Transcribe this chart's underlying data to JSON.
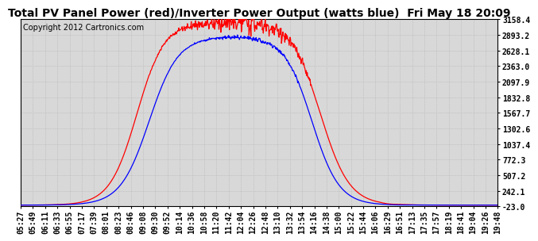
{
  "title": "Total PV Panel Power (red)/Inverter Power Output (watts blue)  Fri May 18 20:09",
  "copyright_text": "Copyright 2012 Cartronics.com",
  "y_min": -23.0,
  "y_max": 3158.4,
  "y_ticks": [
    3158.4,
    2893.2,
    2628.1,
    2363.0,
    2097.9,
    1832.8,
    1567.7,
    1302.6,
    1037.4,
    772.3,
    507.2,
    242.1,
    -23.0
  ],
  "x_labels": [
    "05:27",
    "05:49",
    "06:11",
    "06:33",
    "06:55",
    "07:17",
    "07:39",
    "08:01",
    "08:23",
    "08:46",
    "09:08",
    "09:30",
    "09:52",
    "10:14",
    "10:36",
    "10:58",
    "11:20",
    "11:42",
    "12:04",
    "12:26",
    "12:48",
    "13:10",
    "13:32",
    "13:54",
    "14:16",
    "14:38",
    "15:00",
    "15:22",
    "15:44",
    "16:06",
    "16:29",
    "16:51",
    "17:13",
    "17:35",
    "17:57",
    "18:19",
    "18:41",
    "19:04",
    "19:26",
    "19:48"
  ],
  "red_color": "#ff0000",
  "blue_color": "#0000ff",
  "bg_color": "#ffffff",
  "grid_color": "#b0b0b0",
  "title_fontsize": 10,
  "copyright_fontsize": 7,
  "tick_fontsize": 7
}
